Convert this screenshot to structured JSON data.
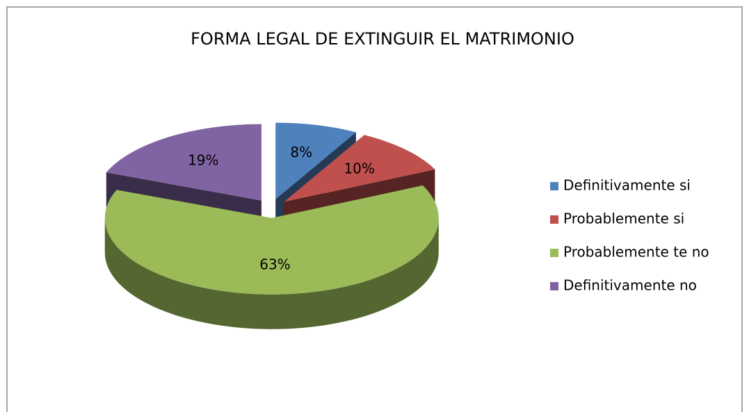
{
  "chart_data": {
    "type": "pie3d",
    "title": "FORMA LEGAL DE EXTINGUIR EL MATRIMONIO",
    "categories": [
      "Definitivamente si",
      "Probablemente si",
      "Probablemente te no",
      "Definitivamente no"
    ],
    "values": [
      8,
      10,
      63,
      19
    ],
    "value_labels": [
      "8%",
      "10%",
      "63%",
      "19%"
    ],
    "colors": [
      "#4f81bd",
      "#c0504d",
      "#9bbb59",
      "#8064a2"
    ],
    "legend": "right"
  }
}
